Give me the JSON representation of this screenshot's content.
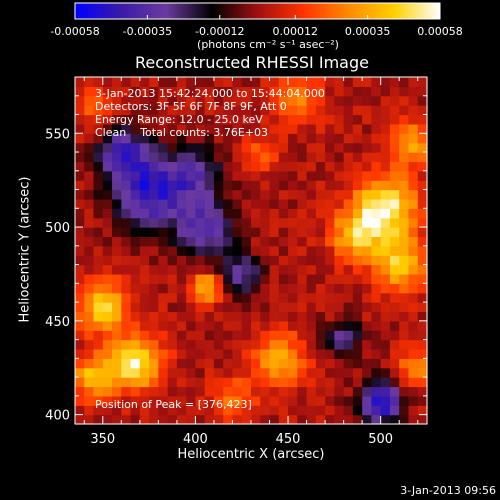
{
  "colorbar": {
    "ticks": [
      "-0.00058",
      "-0.00035",
      "-0.00012",
      "0.00012",
      "0.00035",
      "0.00058"
    ],
    "tick_values": [
      -0.00058,
      -0.00035,
      -0.00012,
      0.00012,
      0.00035,
      0.00058
    ],
    "unit_label": "(photons cm⁻² s⁻¹ asec⁻²)",
    "colors": [
      "#0000ff",
      "#3a1aa8",
      "#6a3aa0",
      "#000000",
      "#a01010",
      "#ff3300",
      "#ff8a00",
      "#ffd000",
      "#ffffff"
    ]
  },
  "chart_data": {
    "type": "heatmap",
    "title": "Reconstructed RHESSI Image",
    "xlabel": "Heliocentric X (arcsec)",
    "ylabel": "Heliocentric Y (arcsec)",
    "xlim": [
      335,
      525
    ],
    "ylim": [
      395,
      580
    ],
    "xticks": [
      "350",
      "400",
      "450",
      "500"
    ],
    "xtick_values": [
      350,
      400,
      450,
      500
    ],
    "yticks": [
      "400",
      "450",
      "500",
      "550"
    ],
    "ytick_values": [
      400,
      450,
      500,
      550
    ],
    "annotations": [
      "3-Jan-2013 15:42:24.000 to 15:44:04.000",
      "Detectors: 3F 5F 6F 7F 8F 9F, Att 0",
      "Energy Range: 12.0 - 25.0 keV",
      "Clean    Total counts: 3.76E+03"
    ],
    "peak_label": "Position of Peak = [376,423]",
    "peak_position": [
      376,
      423
    ],
    "blobs": [
      {
        "x": 502,
        "y": 510,
        "sigma": 12,
        "value": 0.00055
      },
      {
        "x": 510,
        "y": 480,
        "sigma": 10,
        "value": 0.0004
      },
      {
        "x": 486,
        "y": 495,
        "sigma": 9,
        "value": 0.00035
      },
      {
        "x": 516,
        "y": 545,
        "sigma": 9,
        "value": 0.0003
      },
      {
        "x": 455,
        "y": 568,
        "sigma": 9,
        "value": 0.00028
      },
      {
        "x": 405,
        "y": 468,
        "sigma": 6,
        "value": 0.0004
      },
      {
        "x": 350,
        "y": 458,
        "sigma": 10,
        "value": 0.00042
      },
      {
        "x": 368,
        "y": 428,
        "sigma": 10,
        "value": 0.0005
      },
      {
        "x": 345,
        "y": 420,
        "sigma": 8,
        "value": 0.0004
      },
      {
        "x": 445,
        "y": 430,
        "sigma": 10,
        "value": 0.00035
      },
      {
        "x": 420,
        "y": 408,
        "sigma": 8,
        "value": 0.00025
      },
      {
        "x": 520,
        "y": 425,
        "sigma": 7,
        "value": 0.0003
      },
      {
        "x": 345,
        "y": 565,
        "sigma": 8,
        "value": 0.0002
      },
      {
        "x": 435,
        "y": 540,
        "sigma": 7,
        "value": 0.0002
      },
      {
        "x": 375,
        "y": 520,
        "sigma": 14,
        "value": -0.0005
      },
      {
        "x": 360,
        "y": 540,
        "sigma": 9,
        "value": -0.0004
      },
      {
        "x": 405,
        "y": 500,
        "sigma": 12,
        "value": -0.00035
      },
      {
        "x": 425,
        "y": 475,
        "sigma": 8,
        "value": -0.0003
      },
      {
        "x": 500,
        "y": 407,
        "sigma": 8,
        "value": -0.00055
      },
      {
        "x": 480,
        "y": 440,
        "sigma": 7,
        "value": -0.0003
      },
      {
        "x": 400,
        "y": 530,
        "sigma": 10,
        "value": -0.0003
      }
    ]
  },
  "footer": {
    "timestamp": "3-Jan-2013 09:56"
  }
}
